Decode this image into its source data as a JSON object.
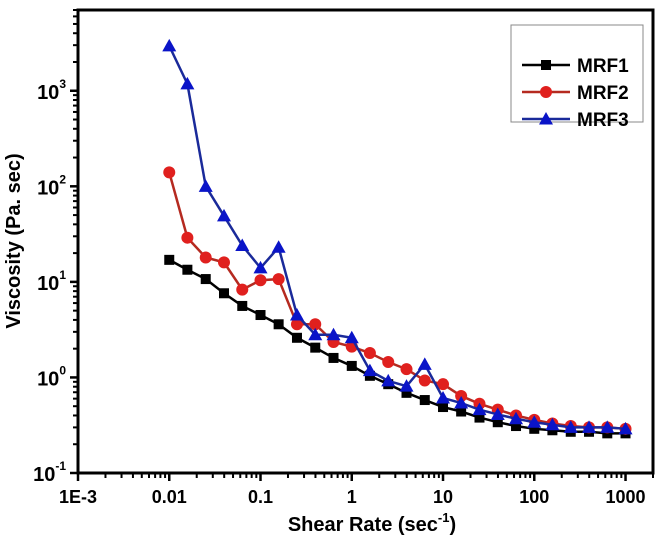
{
  "chart_data": {
    "type": "line",
    "title": "",
    "xlabel": "Shear Rate (sec",
    "xlabel_sup": "-1",
    "xlabel_close": ")",
    "ylabel": "Viscosity (Pa. sec)",
    "xscale": "log",
    "yscale": "log",
    "xlim": [
      0.001,
      2000
    ],
    "ylim": [
      0.1,
      7000
    ],
    "grid": false,
    "legend_position": "top-right",
    "x_ticks": [
      {
        "value": 0.001,
        "label": "1E-3"
      },
      {
        "value": 0.01,
        "label": "0.01"
      },
      {
        "value": 0.1,
        "label": "0.1"
      },
      {
        "value": 1,
        "label": "1"
      },
      {
        "value": 10,
        "label": "10"
      },
      {
        "value": 100,
        "label": "100"
      },
      {
        "value": 1000,
        "label": "1000"
      }
    ],
    "y_ticks": [
      {
        "value": 0.1,
        "base": "10",
        "exp": "-1"
      },
      {
        "value": 1,
        "base": "10",
        "exp": "0"
      },
      {
        "value": 10,
        "base": "10",
        "exp": "1"
      },
      {
        "value": 100,
        "base": "10",
        "exp": "2"
      },
      {
        "value": 1000,
        "base": "10",
        "exp": "3"
      }
    ],
    "x": [
      0.01,
      0.0158,
      0.0251,
      0.0398,
      0.0631,
      0.1,
      0.158,
      0.251,
      0.398,
      0.631,
      1,
      1.58,
      2.51,
      3.98,
      6.31,
      10,
      15.8,
      25.1,
      39.8,
      63.1,
      100,
      158,
      251,
      398,
      631,
      1000
    ],
    "series": [
      {
        "name": "MRF1",
        "color": "#000000",
        "marker": "square",
        "values": [
          17,
          13.4,
          10.7,
          7.6,
          5.6,
          4.5,
          3.6,
          2.6,
          2.05,
          1.6,
          1.32,
          1.04,
          0.85,
          0.69,
          0.58,
          0.49,
          0.44,
          0.38,
          0.34,
          0.31,
          0.29,
          0.28,
          0.27,
          0.27,
          0.26,
          0.26
        ]
      },
      {
        "name": "MRF2",
        "color": "#e0201e",
        "line_color": "#b52a20",
        "marker": "circle",
        "values": [
          140,
          29,
          18,
          16,
          8.3,
          10.4,
          10.7,
          3.6,
          3.6,
          2.35,
          2.1,
          1.8,
          1.45,
          1.22,
          0.93,
          0.85,
          0.64,
          0.53,
          0.46,
          0.4,
          0.36,
          0.33,
          0.31,
          0.3,
          0.3,
          0.29
        ]
      },
      {
        "name": "MRF3",
        "color": "#0a14c8",
        "line_color": "#1a2a9a",
        "marker": "triangle",
        "values": [
          2950,
          1180,
          100,
          49,
          24,
          14,
          23,
          4.5,
          2.8,
          2.8,
          2.6,
          1.18,
          0.92,
          0.81,
          1.37,
          0.61,
          0.54,
          0.46,
          0.41,
          0.37,
          0.34,
          0.32,
          0.3,
          0.3,
          0.3,
          0.29
        ]
      }
    ]
  }
}
